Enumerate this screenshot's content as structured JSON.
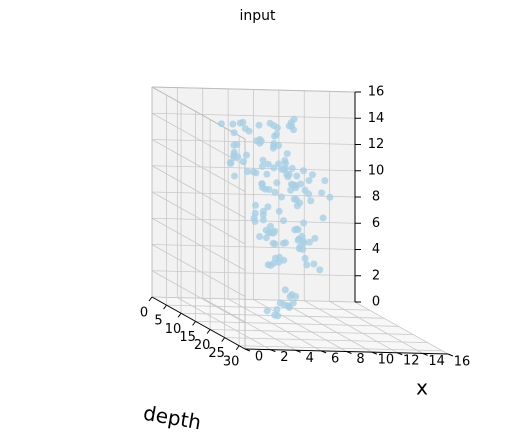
{
  "chart_data": {
    "type": "scatter",
    "projection": "3d",
    "title": "input",
    "axes": {
      "depth": {
        "label": "depth",
        "range": [
          0,
          32
        ],
        "ticks": [
          0,
          5,
          10,
          15,
          20,
          25,
          30
        ]
      },
      "x": {
        "label": "x",
        "range": [
          0,
          16
        ],
        "ticks": [
          0,
          2,
          4,
          6,
          8,
          10,
          12,
          14,
          16
        ]
      },
      "z": {
        "label": "",
        "range": [
          0,
          16
        ],
        "ticks": [
          0,
          2,
          4,
          6,
          8,
          10,
          12,
          14,
          16
        ]
      }
    },
    "grid": true,
    "marker_color": "#a6cfe5",
    "point_count_approx": 150,
    "clusters": [
      {
        "depth_range": [
          0,
          4
        ],
        "x_range": [
          5,
          11
        ],
        "z_range": [
          9,
          14
        ],
        "count": 58
      },
      {
        "depth_range": [
          6,
          16
        ],
        "x_range": [
          6,
          11
        ],
        "z_range": [
          7,
          11
        ],
        "count": 36
      },
      {
        "depth_range": [
          16,
          24
        ],
        "x_range": [
          4,
          8
        ],
        "z_range": [
          5,
          8
        ],
        "count": 32
      },
      {
        "depth_range": [
          -2,
          2
        ],
        "x_range": [
          9,
          11
        ],
        "z_range": [
          5,
          7
        ],
        "count": 6
      },
      {
        "depth_range": [
          8,
          12
        ],
        "x_range": [
          7,
          9
        ],
        "z_range": [
          0,
          2
        ],
        "count": 14
      }
    ]
  }
}
